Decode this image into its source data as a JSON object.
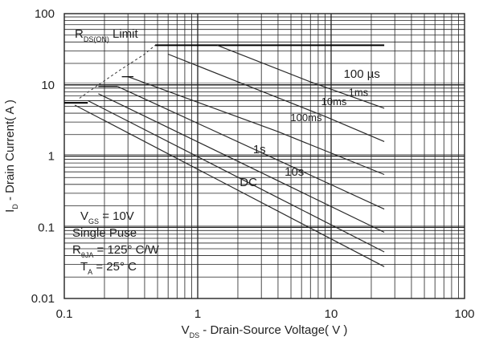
{
  "chart_data": {
    "type": "line",
    "title": "",
    "xlabel": "V_DS - Drain-Source Voltage( V )",
    "xlabel_parts": {
      "main": "V",
      "sub": "DS",
      "rest": " - Drain-Source Voltage( V )"
    },
    "ylabel": "I_D - Drain Current( A )",
    "ylabel_parts": {
      "main": "I",
      "sub": "D",
      "rest": " - Drain Current( A )"
    },
    "xscale": "log",
    "yscale": "log",
    "xlim": [
      0.1,
      100
    ],
    "ylim": [
      0.01,
      100
    ],
    "grid": true,
    "x_ticks": [
      "0.1",
      "1",
      "10",
      "100"
    ],
    "x_tick_values": [
      0.1,
      1,
      10,
      100
    ],
    "y_ticks": [
      "100",
      "10",
      "1",
      "0.1",
      "0.01"
    ],
    "y_tick_values": [
      100,
      10,
      1,
      0.1,
      0.01
    ],
    "rds_label": {
      "main": "R",
      "sub": "DS(ON)",
      "rest": " Limit"
    },
    "rds_limit": {
      "x": [
        0.13,
        0.18,
        0.26,
        0.4,
        0.48
      ],
      "y": [
        6.5,
        10,
        16,
        27,
        36
      ]
    },
    "current_limit": {
      "x": [
        0.48,
        25
      ],
      "y": [
        36,
        36
      ]
    },
    "series": [
      {
        "name": "100 µs",
        "x": [
          1.4,
          7,
          25
        ],
        "y": [
          36,
          11,
          4.7
        ]
      },
      {
        "name": "1ms",
        "x": [
          0.6,
          9,
          25
        ],
        "y": [
          27,
          3.6,
          1.6
        ]
      },
      {
        "name": "10ms",
        "x": [
          0.3,
          4,
          25
        ],
        "y": [
          13,
          2.2,
          0.55
        ]
      },
      {
        "name": "100ms",
        "x": [
          0.25,
          25
        ],
        "y": [
          9.5,
          0.18
        ]
      },
      {
        "name": "1s",
        "x": [
          0.18,
          25
        ],
        "y": [
          7.5,
          0.085
        ]
      },
      {
        "name": "10s",
        "x": [
          0.15,
          25
        ],
        "y": [
          6,
          0.045
        ]
      },
      {
        "name": "DC",
        "x": [
          0.12,
          25
        ],
        "y": [
          5.2,
          0.028
        ]
      }
    ],
    "annotations": [
      {
        "text": "100 µs",
        "x": 17,
        "y": 12.5
      },
      {
        "text": "1ms",
        "x": 16,
        "y": 7
      },
      {
        "text": "10ms",
        "x": 10.5,
        "y": 5.2
      },
      {
        "text": "100ms",
        "x": 6.5,
        "y": 3.1
      },
      {
        "text": "1s",
        "x": 2.9,
        "y": 1.1
      },
      {
        "text": "10s",
        "x": 5.3,
        "y": 0.53
      },
      {
        "text": "DC",
        "x": 2.4,
        "y": 0.38
      }
    ],
    "conditions": [
      {
        "main": "V",
        "sub": "GS",
        "rest": " = 10V"
      },
      {
        "main": "Single Puse",
        "sub": "",
        "rest": ""
      },
      {
        "main": "R",
        "sub": "θJA",
        "rest": " = 125° C/W"
      },
      {
        "main": "T",
        "sub": "A",
        "rest": " = 25° C"
      }
    ]
  }
}
